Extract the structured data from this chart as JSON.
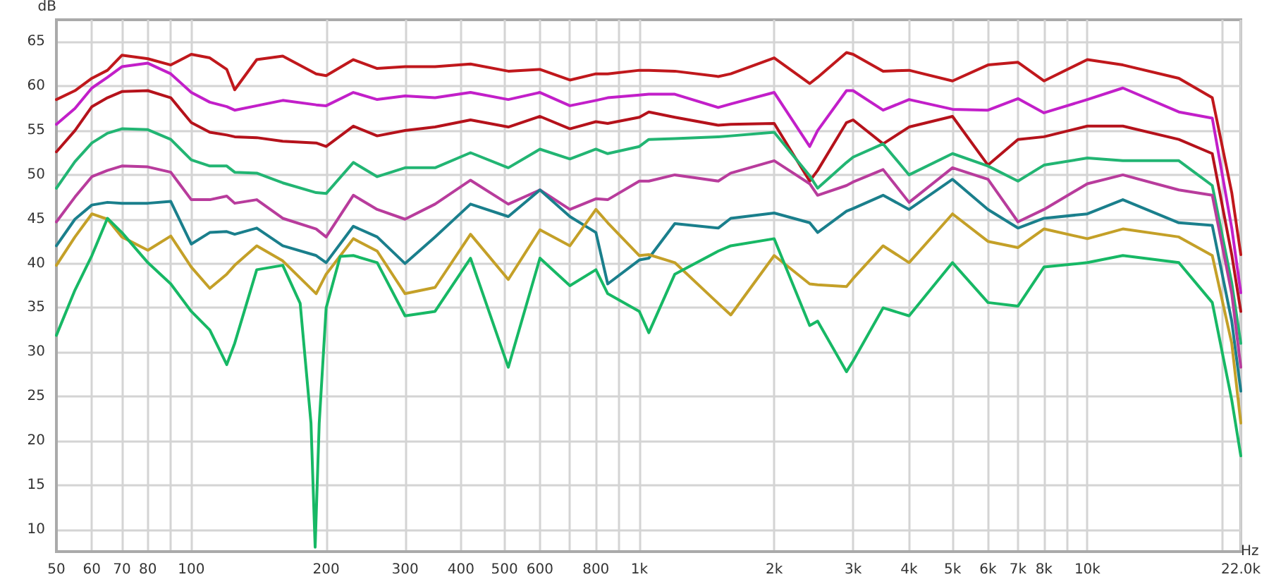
{
  "chart_data": {
    "type": "line",
    "xlabel": "Hz",
    "ylabel": "dB",
    "log": "x",
    "grid": true,
    "marker": "none",
    "line_style": "solid",
    "xlim": [
      50,
      22000
    ],
    "ylim": [
      7.5,
      67.5
    ],
    "xticks": [
      50,
      60,
      70,
      80,
      {
        "value": 90,
        "label": null
      },
      100,
      200,
      300,
      400,
      500,
      600,
      {
        "value": 700,
        "label": null
      },
      800,
      {
        "value": 900,
        "label": null
      },
      {
        "value": 1000,
        "label": "1k"
      },
      {
        "value": 2000,
        "label": "2k"
      },
      {
        "value": 3000,
        "label": "3k"
      },
      {
        "value": 4000,
        "label": "4k"
      },
      {
        "value": 5000,
        "label": "5k"
      },
      {
        "value": 6000,
        "label": "6k"
      },
      {
        "value": 7000,
        "label": "7k"
      },
      {
        "value": 8000,
        "label": "8k"
      },
      {
        "value": 9000,
        "label": null
      },
      {
        "value": 10000,
        "label": "10k"
      },
      {
        "value": 20000,
        "label": null
      },
      {
        "value": 22000,
        "label": "22.0k"
      }
    ],
    "yticks": [
      10,
      15,
      20,
      25,
      30,
      35,
      40,
      45,
      50,
      55,
      60,
      65
    ],
    "x": [
      50,
      55,
      60,
      65,
      70,
      80,
      90,
      100,
      110,
      120,
      125,
      140,
      160,
      190,
      200,
      230,
      260,
      300,
      350,
      420,
      510,
      600,
      700,
      800,
      850,
      1000,
      1050,
      1200,
      1500,
      1600,
      2000,
      2400,
      2500,
      2900,
      3000,
      3500,
      4000,
      5000,
      6000,
      7000,
      8000,
      10000,
      12000,
      16000,
      19000,
      21000,
      22000
    ],
    "series": [
      {
        "color": "#c0181c",
        "values": [
          58.5,
          59.5,
          60.9,
          61.8,
          63.5,
          63.1,
          62.4,
          63.6,
          63.2,
          61.9,
          59.6,
          63,
          63.4,
          61.4,
          61.2,
          63,
          62,
          62.2,
          62.2,
          62.5,
          61.7,
          61.9,
          60.7,
          61.4,
          61.4,
          61.8,
          61.8,
          61.7,
          61.1,
          61.4,
          63.2,
          60.3,
          61,
          63.8,
          63.6,
          61.7,
          61.8,
          60.6,
          62.4,
          62.7,
          60.6,
          63,
          62.4,
          60.9,
          58.7,
          48,
          41
        ]
      },
      {
        "color": "#c21fc9",
        "values": [
          55.7,
          57.5,
          59.8,
          61,
          62.2,
          62.6,
          61.4,
          59.3,
          58.2,
          57.7,
          57.3,
          57.8,
          58.4,
          57.9,
          57.8,
          59.3,
          58.5,
          58.9,
          58.7,
          59.3,
          58.5,
          59.3,
          57.8,
          58.4,
          58.7,
          59,
          59.1,
          59.1,
          57.6,
          58,
          59.3,
          53.2,
          55,
          59.5,
          59.5,
          57.3,
          58.5,
          57.4,
          57.3,
          58.6,
          57,
          58.5,
          59.8,
          57.1,
          56.4,
          44,
          36.7
        ]
      },
      {
        "color": "#b5121b",
        "values": [
          52.6,
          55,
          57.7,
          58.7,
          59.4,
          59.5,
          58.7,
          55.9,
          54.8,
          54.5,
          54.3,
          54.2,
          53.8,
          53.6,
          53.2,
          55.5,
          54.4,
          55,
          55.4,
          56.2,
          55.4,
          56.6,
          55.2,
          56,
          55.8,
          56.5,
          57.1,
          56.5,
          55.6,
          55.7,
          55.8,
          49.3,
          50.5,
          55.9,
          56.2,
          53.5,
          55.4,
          56.6,
          51.1,
          54,
          54.3,
          55.5,
          55.5,
          54,
          52.4,
          41,
          34.6
        ]
      },
      {
        "color": "#22b573",
        "values": [
          48.5,
          51.5,
          53.6,
          54.7,
          55.2,
          55.1,
          54,
          51.7,
          51,
          51,
          50.3,
          50.2,
          49.1,
          48,
          47.9,
          51.4,
          49.8,
          50.8,
          50.8,
          52.5,
          50.8,
          52.9,
          51.8,
          52.9,
          52.4,
          53.2,
          54,
          54.1,
          54.3,
          54.4,
          54.8,
          49.9,
          48.5,
          51.4,
          52,
          53.5,
          50,
          52.4,
          51,
          49.3,
          51.1,
          51.9,
          51.6,
          51.6,
          48.8,
          37.8,
          31
        ]
      },
      {
        "color": "#b83c9c",
        "values": [
          44.7,
          47.5,
          49.8,
          50.5,
          51,
          50.9,
          50.3,
          47.2,
          47.2,
          47.6,
          46.8,
          47.2,
          45.1,
          43.9,
          43,
          47.7,
          46.1,
          45,
          46.7,
          49.4,
          46.7,
          48.3,
          46.1,
          47.3,
          47.2,
          49.3,
          49.3,
          50,
          49.3,
          50.2,
          51.6,
          49,
          47.7,
          48.8,
          49.2,
          50.6,
          46.9,
          50.8,
          49.5,
          44.7,
          46.1,
          49,
          50,
          48.3,
          47.7,
          36.6,
          28.3
        ]
      },
      {
        "color": "#1a7f8c",
        "values": [
          42,
          45,
          46.6,
          46.9,
          46.8,
          46.8,
          47,
          42.2,
          43.5,
          43.6,
          43.3,
          44,
          42,
          40.9,
          40.1,
          44.2,
          43,
          40,
          43,
          46.7,
          45.3,
          48.3,
          45.3,
          43.5,
          37.7,
          40.4,
          40.6,
          44.5,
          44,
          45.1,
          45.7,
          44.6,
          43.5,
          45.9,
          46.2,
          47.7,
          46.1,
          49.5,
          46.1,
          44,
          45.1,
          45.6,
          47.2,
          44.6,
          44.3,
          33.5,
          25.6
        ]
      },
      {
        "color": "#c4a028",
        "values": [
          39.8,
          43,
          45.6,
          45,
          43,
          41.5,
          43.1,
          39.6,
          37.2,
          38.8,
          39.8,
          42,
          40.3,
          36.6,
          38.8,
          42.8,
          41.4,
          36.6,
          37.3,
          43.3,
          38.2,
          43.8,
          42,
          46.1,
          44.6,
          40.9,
          41,
          40.1,
          35.5,
          34.2,
          40.9,
          37.7,
          37.6,
          37.4,
          38.3,
          42,
          40.1,
          45.6,
          42.5,
          41.8,
          43.9,
          42.8,
          43.9,
          43,
          40.9,
          31,
          22
        ]
      },
      {
        "color": "#17b865",
        "x": [
          50,
          55,
          60,
          65,
          70,
          80,
          90,
          100,
          110,
          120,
          125,
          140,
          160,
          175,
          185,
          189,
          193,
          200,
          215,
          230,
          260,
          300,
          350,
          420,
          510,
          600,
          700,
          800,
          850,
          1000,
          1050,
          1200,
          1500,
          1600,
          2000,
          2400,
          2500,
          2900,
          3000,
          3500,
          4000,
          5000,
          6000,
          7000,
          8000,
          10000,
          12000,
          16000,
          19000,
          21000,
          22000
        ],
        "values": [
          31.9,
          37,
          40.9,
          45.1,
          43.5,
          40.1,
          37.7,
          34.6,
          32.5,
          28.6,
          31,
          39.3,
          39.8,
          35.5,
          22,
          8,
          22,
          35,
          40.8,
          40.9,
          40.1,
          34.1,
          34.6,
          40.6,
          28.3,
          40.6,
          37.5,
          39.3,
          36.6,
          34.6,
          32.2,
          38.8,
          41.4,
          42,
          42.8,
          33,
          33.5,
          27.8,
          29,
          35,
          34.1,
          40.1,
          35.6,
          35.2,
          39.6,
          40.1,
          40.9,
          40.1,
          35.6,
          24.6,
          18.3
        ]
      }
    ]
  }
}
